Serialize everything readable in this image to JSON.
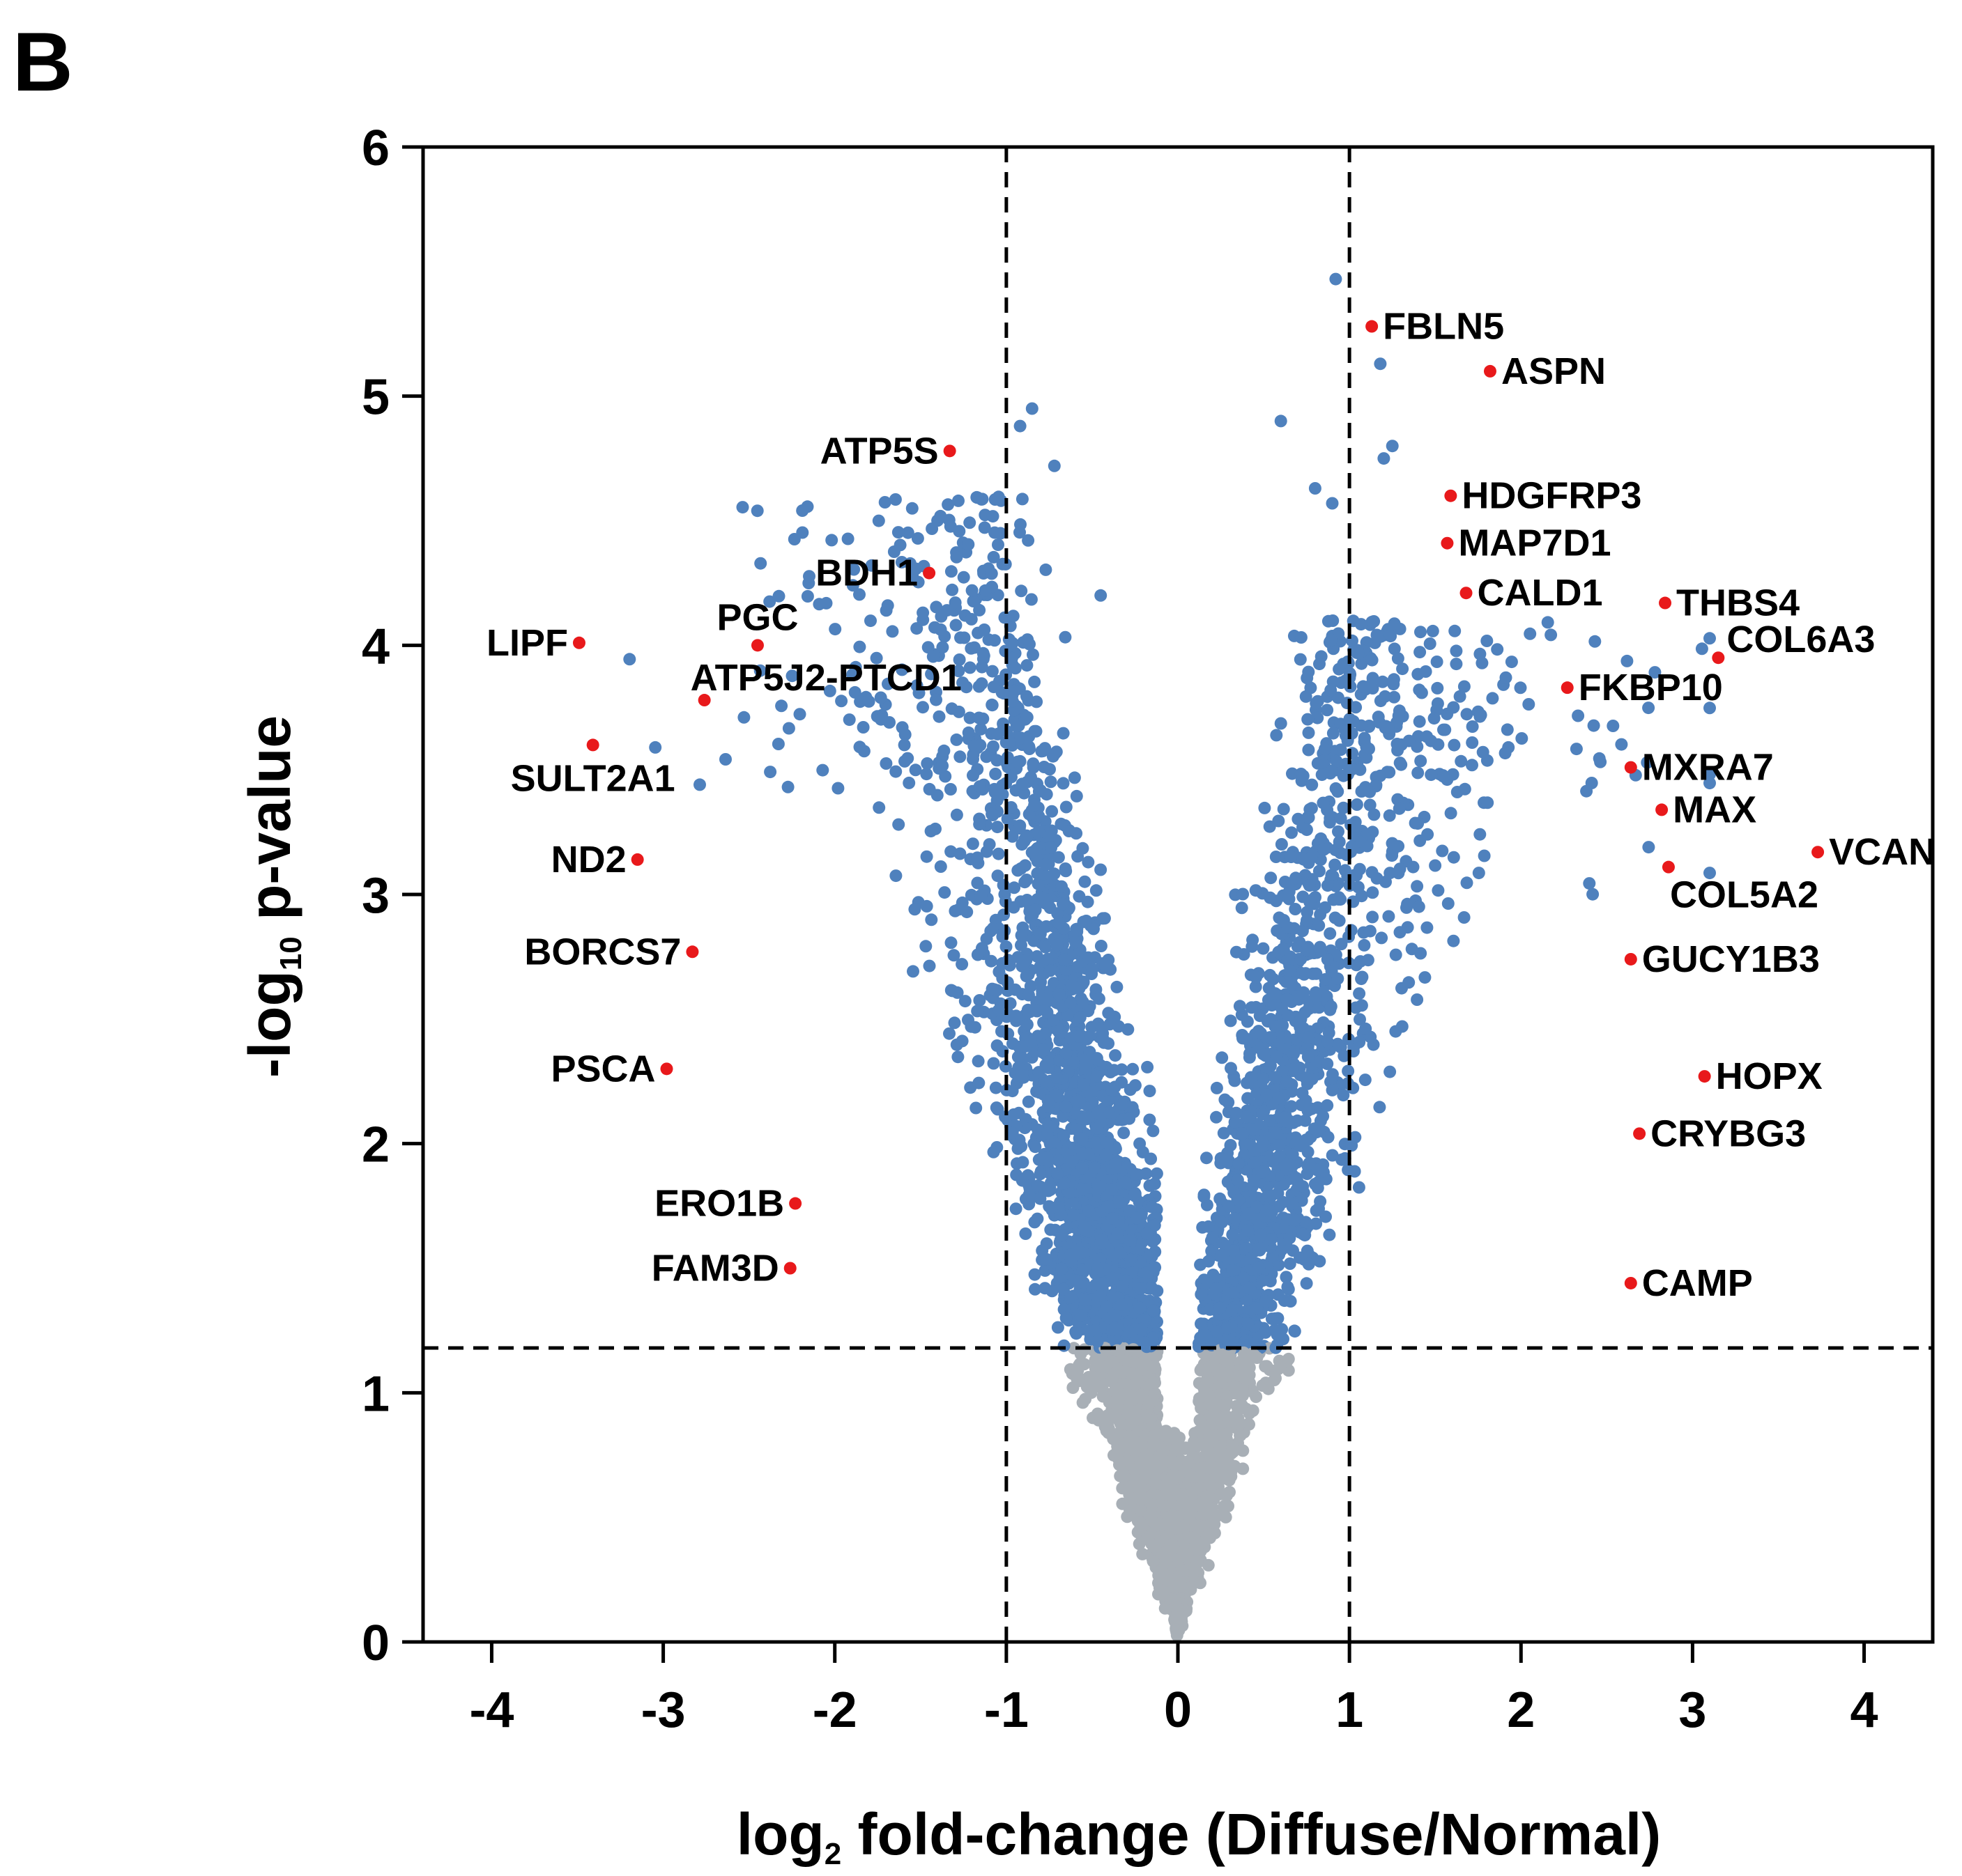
{
  "panel_letter": "B",
  "colors": {
    "significant": "#4f81bd",
    "not_significant": "#a8afb6",
    "highlight": "#e8191b",
    "axis": "#000000"
  },
  "chart_data": {
    "type": "scatter",
    "subtype": "volcano",
    "title": "",
    "xlabel": {
      "pre": "log",
      "sub": "2",
      "post": " fold-change (Diffuse/Normal)"
    },
    "ylabel": {
      "pre": "-log",
      "sub": "10",
      "post": " p-value"
    },
    "xlim": [
      -4.4,
      4.4
    ],
    "ylim": [
      0,
      6
    ],
    "xticks": [
      -4,
      -3,
      -2,
      -1,
      0,
      1,
      2,
      3,
      4
    ],
    "xtick_labels": [
      "-4",
      "-3",
      "-2",
      "-1",
      "0",
      "1",
      "2",
      "3",
      "4"
    ],
    "yticks": [
      0,
      1,
      2,
      3,
      4,
      5,
      6
    ],
    "ytick_labels": [
      "0",
      "1",
      "2",
      "3",
      "4",
      "5",
      "6"
    ],
    "thresholds": {
      "fold_change": [
        -1,
        1
      ],
      "neg_log10_p": 1.18
    },
    "background_cloud_note": "approx. 5000 proteins; generated procedurally for visual reproduction",
    "highlighted_genes": [
      {
        "name": "ATP5S",
        "x": -1.33,
        "y": 4.78,
        "side": "left"
      },
      {
        "name": "BDH1",
        "x": -1.45,
        "y": 4.29,
        "side": "left"
      },
      {
        "name": "LIPF",
        "x": -3.49,
        "y": 4.01,
        "side": "left"
      },
      {
        "name": "PGC",
        "x": -2.45,
        "y": 4.0,
        "side": "above"
      },
      {
        "name": "ATP5J2-PTCD1",
        "x": -2.76,
        "y": 3.78,
        "side": "right-up"
      },
      {
        "name": "SULT2A1",
        "x": -3.41,
        "y": 3.6,
        "side": "below"
      },
      {
        "name": "ND2",
        "x": -3.15,
        "y": 3.14,
        "side": "left"
      },
      {
        "name": "BORCS7",
        "x": -2.83,
        "y": 2.77,
        "side": "left"
      },
      {
        "name": "PSCA",
        "x": -2.98,
        "y": 2.3,
        "side": "left"
      },
      {
        "name": "ERO1B",
        "x": -2.23,
        "y": 1.76,
        "side": "left"
      },
      {
        "name": "FAM3D",
        "x": -2.26,
        "y": 1.5,
        "side": "left"
      },
      {
        "name": "FBLN5",
        "x": 1.13,
        "y": 5.28,
        "side": "right"
      },
      {
        "name": "ASPN",
        "x": 1.82,
        "y": 5.1,
        "side": "right"
      },
      {
        "name": "HDGFRP3",
        "x": 1.59,
        "y": 4.6,
        "side": "right"
      },
      {
        "name": "MAP7D1",
        "x": 1.57,
        "y": 4.41,
        "side": "right"
      },
      {
        "name": "CALD1",
        "x": 1.68,
        "y": 4.21,
        "side": "right"
      },
      {
        "name": "THBS4",
        "x": 2.84,
        "y": 4.17,
        "side": "right"
      },
      {
        "name": "COL6A3",
        "x": 3.15,
        "y": 3.95,
        "side": "right-up"
      },
      {
        "name": "FKBP10",
        "x": 2.27,
        "y": 3.83,
        "side": "right"
      },
      {
        "name": "MXRA7",
        "x": 2.64,
        "y": 3.51,
        "side": "right"
      },
      {
        "name": "MAX",
        "x": 2.82,
        "y": 3.34,
        "side": "right"
      },
      {
        "name": "VCAN",
        "x": 3.73,
        "y": 3.17,
        "side": "right"
      },
      {
        "name": "COL5A2",
        "x": 2.86,
        "y": 3.11,
        "side": "below"
      },
      {
        "name": "GUCY1B3",
        "x": 2.64,
        "y": 2.74,
        "side": "right"
      },
      {
        "name": "HOPX",
        "x": 3.07,
        "y": 2.27,
        "side": "right"
      },
      {
        "name": "CRYBG3",
        "x": 2.69,
        "y": 2.04,
        "side": "right"
      },
      {
        "name": "CAMP",
        "x": 2.64,
        "y": 1.44,
        "side": "right"
      }
    ]
  }
}
